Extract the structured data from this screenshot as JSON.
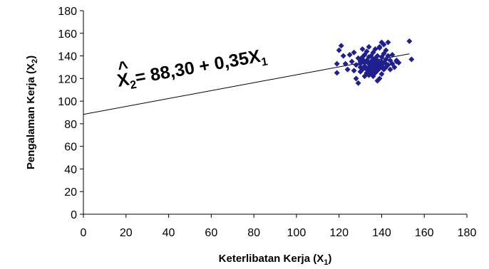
{
  "chart_data": {
    "type": "scatter",
    "xlabel": "Keterlibatan Kerja (X",
    "xlabel_sub": "1",
    "xlabel_end": ")",
    "ylabel": "Pengalaman Kerja (X",
    "ylabel_sub": "2",
    "ylabel_end": ")",
    "xlim": [
      0,
      180
    ],
    "ylim": [
      0,
      180
    ],
    "xticks": [
      "0",
      "20",
      "40",
      "60",
      "80",
      "100",
      "120",
      "140",
      "160",
      "180"
    ],
    "yticks": [
      "0",
      "20",
      "40",
      "60",
      "80",
      "100",
      "120",
      "140",
      "160",
      "180"
    ],
    "grid": false,
    "equation": {
      "lhs": "X",
      "lhs_sub": "2",
      "hat": "^",
      "rhs": "= 88,30 + 0,35X",
      "rhs_sub": "1"
    },
    "regression": {
      "intercept": 88.3,
      "slope": 0.35,
      "x_range": [
        0,
        153
      ]
    },
    "marker_color": "#1F1F8F",
    "line_color": "#000000",
    "points": [
      [
        120,
        145
      ],
      [
        121,
        149
      ],
      [
        122,
        140
      ],
      [
        119,
        133
      ],
      [
        119,
        125
      ],
      [
        123,
        133
      ],
      [
        124,
        128
      ],
      [
        125,
        141
      ],
      [
        126,
        135
      ],
      [
        127,
        127
      ],
      [
        127,
        143
      ],
      [
        128,
        132
      ],
      [
        128,
        120
      ],
      [
        129,
        116
      ],
      [
        129,
        138
      ],
      [
        130,
        126
      ],
      [
        130,
        133
      ],
      [
        130,
        130
      ],
      [
        131,
        128
      ],
      [
        131,
        137
      ],
      [
        131,
        146
      ],
      [
        132,
        122
      ],
      [
        132,
        131
      ],
      [
        132,
        134
      ],
      [
        132,
        141
      ],
      [
        133,
        125
      ],
      [
        133,
        128
      ],
      [
        133,
        136
      ],
      [
        133,
        144
      ],
      [
        134,
        123
      ],
      [
        134,
        130
      ],
      [
        134,
        133
      ],
      [
        134,
        139
      ],
      [
        134,
        148
      ],
      [
        135,
        126
      ],
      [
        135,
        131
      ],
      [
        135,
        135
      ],
      [
        135,
        140
      ],
      [
        135,
        129
      ],
      [
        136,
        122
      ],
      [
        136,
        128
      ],
      [
        136,
        132
      ],
      [
        136,
        137
      ],
      [
        136,
        143
      ],
      [
        137,
        125
      ],
      [
        137,
        130
      ],
      [
        137,
        134
      ],
      [
        137,
        146
      ],
      [
        138,
        127
      ],
      [
        138,
        132
      ],
      [
        138,
        136
      ],
      [
        138,
        140
      ],
      [
        139,
        120
      ],
      [
        139,
        129
      ],
      [
        139,
        133
      ],
      [
        139,
        148
      ],
      [
        140,
        124
      ],
      [
        140,
        131
      ],
      [
        140,
        135
      ],
      [
        140,
        139
      ],
      [
        140,
        152
      ],
      [
        141,
        128
      ],
      [
        141,
        134
      ],
      [
        141,
        142
      ],
      [
        142,
        130
      ],
      [
        142,
        137
      ],
      [
        142,
        145
      ],
      [
        143,
        132
      ],
      [
        143,
        140
      ],
      [
        143,
        152
      ],
      [
        144,
        128
      ],
      [
        144,
        136
      ],
      [
        145,
        133
      ],
      [
        145,
        141
      ],
      [
        146,
        130
      ],
      [
        147,
        136
      ],
      [
        147,
        135
      ],
      [
        148,
        134
      ],
      [
        153,
        153
      ],
      [
        154,
        137
      ],
      [
        130,
        135
      ],
      [
        133,
        124
      ],
      [
        136,
        124
      ],
      [
        138,
        118
      ],
      [
        139,
        147
      ],
      [
        131,
        139
      ],
      [
        134,
        127
      ],
      [
        137,
        138
      ],
      [
        141,
        150
      ],
      [
        142,
        133
      ]
    ]
  }
}
